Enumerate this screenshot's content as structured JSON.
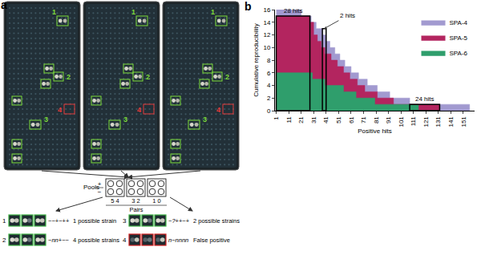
{
  "figure": {
    "panel_a": {
      "label": "a",
      "plate_marks": {
        "hit_labels": [
          "1",
          "2",
          "3"
        ],
        "false_label": "4"
      },
      "pools": {
        "title": "Pools",
        "signs": [
          "+",
          "−"
        ],
        "pairs_title": "Pairs",
        "pair_numbers": [
          "5 4",
          "3 2",
          "1 0"
        ]
      },
      "examples": [
        {
          "id": "1",
          "pattern": "−−+−++",
          "result": "1 possible strain",
          "false_positive": false
        },
        {
          "id": "2",
          "pattern": "−nn+−−",
          "result": "4 possible strains",
          "false_positive": false
        },
        {
          "id": "3",
          "pattern": "−?++−+",
          "result": "2 possible strains",
          "false_positive": false
        },
        {
          "id": "4",
          "pattern": "n−nnnn",
          "result": "False positive",
          "false_positive": true
        }
      ]
    },
    "panel_b": {
      "label": "b"
    }
  },
  "chart_data": {
    "type": "step_area",
    "x_label": "Positive hits",
    "y_label": "Cumulative reproducibility",
    "xlim": [
      0,
      160
    ],
    "xticks": [
      1,
      11,
      21,
      31,
      41,
      51,
      61,
      71,
      81,
      91,
      101,
      111,
      121,
      131,
      141,
      151
    ],
    "ylim": [
      0,
      16
    ],
    "yticks": [
      0,
      2,
      4,
      6,
      8,
      10,
      12,
      14,
      16
    ],
    "grid": false,
    "legend": "upper right",
    "series": [
      {
        "name": "SPA-4",
        "color": "#a29ad0",
        "x": [
          1,
          21,
          29,
          33,
          38,
          41,
          44,
          48,
          52,
          56,
          61,
          67,
          74,
          82,
          92,
          108,
          156
        ],
        "values": [
          16,
          15,
          14,
          13,
          12,
          11,
          10,
          9,
          8,
          7,
          6,
          5,
          4,
          3,
          2,
          1,
          0
        ]
      },
      {
        "name": "SPA-5",
        "color": "#b3255f",
        "x": [
          1,
          28,
          31,
          34,
          37,
          40,
          45,
          50,
          55,
          60,
          66,
          72,
          82,
          95,
          132
        ],
        "values": [
          15,
          14,
          12,
          11,
          10,
          9,
          8,
          7,
          6,
          5,
          4,
          3,
          2,
          1,
          0
        ]
      },
      {
        "name": "SPA-6",
        "color": "#2f9e6c",
        "x": [
          1,
          30,
          40,
          55,
          65,
          80,
          115
        ],
        "values": [
          6,
          5,
          4,
          3,
          2,
          1,
          0
        ]
      }
    ],
    "highlights": [
      {
        "label": "28 hits",
        "x0": 1,
        "x1": 28,
        "y0": 0,
        "y1": 15
      },
      {
        "label": "2 hits",
        "x0": 38,
        "x1": 41,
        "y0": 0,
        "y1": 13
      },
      {
        "label": "24 hits",
        "x0": 108,
        "x1": 132,
        "y0": 0,
        "y1": 1
      }
    ]
  }
}
